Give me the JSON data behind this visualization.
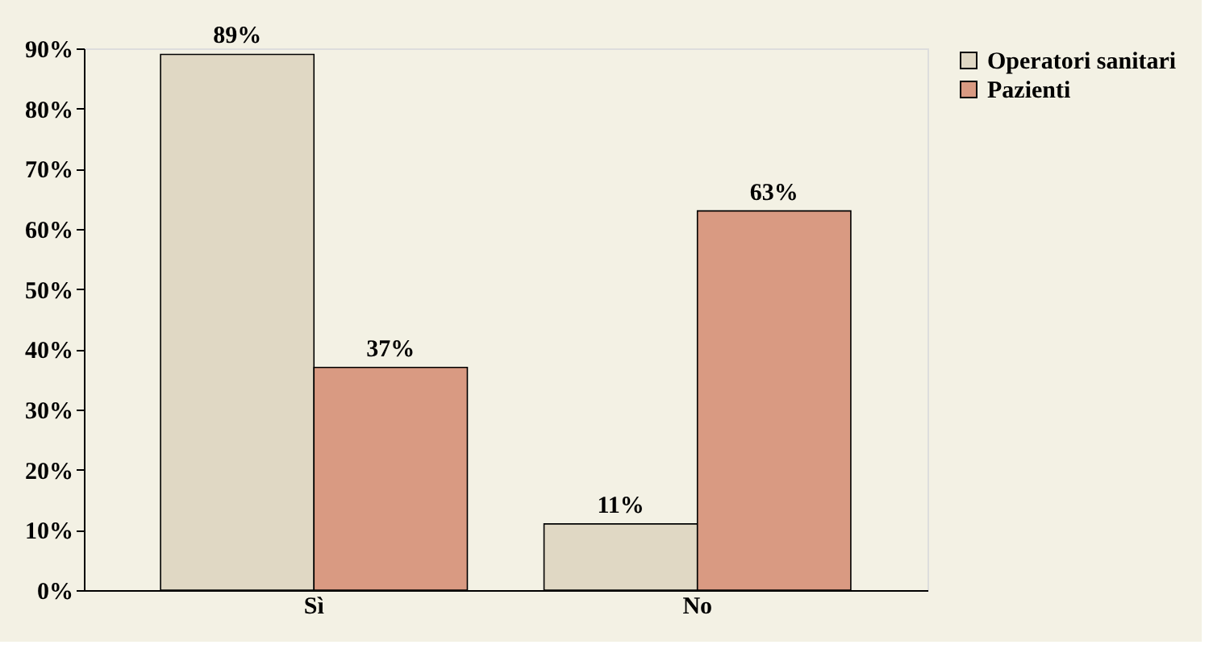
{
  "chart_data": {
    "type": "bar",
    "categories": [
      "Sì",
      "No"
    ],
    "series": [
      {
        "name": "Operatori sanitari",
        "color": "#e0d8c4",
        "values": [
          89,
          11
        ],
        "value_labels": [
          "89%",
          "11%"
        ]
      },
      {
        "name": "Pazienti",
        "color": "#d99a82",
        "values": [
          37,
          63
        ],
        "value_labels": [
          "37%",
          "63%"
        ]
      }
    ],
    "ylim": [
      0,
      90
    ],
    "yticks": [
      {
        "value": 0,
        "label": "0%"
      },
      {
        "value": 10,
        "label": "10%"
      },
      {
        "value": 20,
        "label": "20%"
      },
      {
        "value": 30,
        "label": "30%"
      },
      {
        "value": 40,
        "label": "40%"
      },
      {
        "value": 50,
        "label": "50%"
      },
      {
        "value": 60,
        "label": "60%"
      },
      {
        "value": 70,
        "label": "70%"
      },
      {
        "value": 80,
        "label": "80%"
      },
      {
        "value": 90,
        "label": "90%"
      }
    ],
    "grid": false,
    "legend": "right"
  }
}
